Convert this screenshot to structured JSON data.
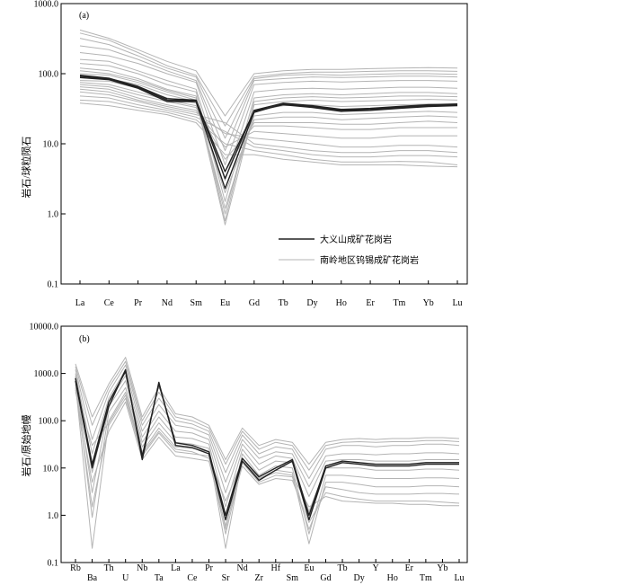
{
  "colors": {
    "background": "#ffffff",
    "reference_pattern": "#b4b4b4",
    "dayishan_pattern": "#222222",
    "axis": "#000000"
  },
  "chart_data": [
    {
      "type": "line",
      "panel_label": "(a)",
      "ylabel": "岩石/球粒陨石",
      "yscale": "log",
      "ylim": [
        0.1,
        1000
      ],
      "ytick_values": [
        0.1,
        1,
        10,
        100,
        1000
      ],
      "ytick_labels": [
        "0.1",
        "1.0",
        "10.0",
        "100.0",
        "1000.0"
      ],
      "categories": [
        "La",
        "Ce",
        "Pr",
        "Nd",
        "Sm",
        "Eu",
        "Gd",
        "Tb",
        "Dy",
        "Ho",
        "Er",
        "Tm",
        "Yb",
        "Lu"
      ],
      "legend": [
        "大义山成矿花岗岩",
        "南岭地区钨锡成矿花岗岩"
      ],
      "series": [
        {
          "name": "大义山成矿花岗岩",
          "group": "dayishan",
          "values": [
            88,
            82,
            62,
            40,
            40,
            2.3,
            28,
            37,
            34,
            30,
            31,
            33,
            35,
            36
          ]
        },
        {
          "name": "大义山成矿花岗岩",
          "group": "dayishan",
          "values": [
            95,
            86,
            66,
            44,
            42,
            3.2,
            30,
            38,
            35,
            31,
            32,
            34,
            36,
            37
          ]
        },
        {
          "name": "大义山成矿花岗岩",
          "group": "dayishan",
          "values": [
            92,
            84,
            64,
            42,
            41,
            4.0,
            29,
            36,
            33,
            29,
            30,
            32,
            34,
            35
          ]
        },
        {
          "name": "南岭地区钨锡成矿花岗岩",
          "group": "reference",
          "values": [
            420,
            320,
            220,
            150,
            110,
            25,
            100,
            110,
            115,
            115,
            118,
            120,
            122,
            120
          ]
        },
        {
          "name": "南岭地区钨锡成矿花岗岩",
          "group": "reference",
          "values": [
            380,
            300,
            200,
            130,
            95,
            18,
            90,
            100,
            105,
            105,
            108,
            110,
            110,
            108
          ]
        },
        {
          "name": "南岭地区钨锡成矿花岗岩",
          "group": "reference",
          "values": [
            320,
            260,
            180,
            120,
            90,
            12,
            85,
            95,
            98,
            95,
            98,
            100,
            100,
            98
          ]
        },
        {
          "name": "南岭地区钨锡成矿花岗岩",
          "group": "reference",
          "values": [
            250,
            220,
            160,
            110,
            80,
            8,
            80,
            85,
            90,
            88,
            90,
            92,
            92,
            90
          ]
        },
        {
          "name": "南岭地区钨锡成矿花岗岩",
          "group": "reference",
          "values": [
            200,
            180,
            140,
            100,
            75,
            5,
            70,
            75,
            78,
            76,
            78,
            80,
            80,
            78
          ]
        },
        {
          "name": "南岭地区钨锡成矿花岗岩",
          "group": "reference",
          "values": [
            160,
            150,
            110,
            80,
            60,
            3,
            55,
            60,
            62,
            60,
            62,
            64,
            64,
            62
          ]
        },
        {
          "name": "南岭地区钨锡成矿花岗岩",
          "group": "reference",
          "values": [
            140,
            130,
            100,
            70,
            55,
            1.5,
            45,
            50,
            52,
            50,
            52,
            54,
            54,
            52
          ]
        },
        {
          "name": "南岭地区钨锡成矿花岗岩",
          "group": "reference",
          "values": [
            120,
            110,
            85,
            60,
            48,
            0.8,
            40,
            45,
            47,
            45,
            46,
            48,
            48,
            47
          ]
        },
        {
          "name": "南岭地区钨锡成矿花岗岩",
          "group": "reference",
          "values": [
            110,
            100,
            80,
            58,
            45,
            1.0,
            36,
            40,
            42,
            40,
            41,
            42,
            43,
            42
          ]
        },
        {
          "name": "南岭地区钨锡成矿花岗岩",
          "group": "reference",
          "values": [
            100,
            95,
            75,
            55,
            42,
            0.7,
            30,
            35,
            36,
            34,
            35,
            36,
            37,
            36
          ]
        },
        {
          "name": "南岭地区钨锡成矿花岗岩",
          "group": "reference",
          "values": [
            90,
            85,
            70,
            50,
            40,
            1.2,
            25,
            28,
            28,
            26,
            27,
            28,
            29,
            28
          ]
        },
        {
          "name": "南岭地区钨锡成矿花岗岩",
          "group": "reference",
          "values": [
            80,
            78,
            62,
            45,
            38,
            2,
            22,
            24,
            24,
            22,
            23,
            24,
            25,
            24
          ]
        },
        {
          "name": "南岭地区钨锡成矿花岗岩",
          "group": "reference",
          "values": [
            75,
            70,
            55,
            42,
            35,
            4,
            20,
            20,
            20,
            19,
            19,
            20,
            21,
            20
          ]
        },
        {
          "name": "南岭地区钨锡成矿花岗岩",
          "group": "reference",
          "values": [
            70,
            65,
            50,
            40,
            33,
            6,
            18,
            18,
            17,
            16,
            16,
            17,
            17,
            17
          ]
        },
        {
          "name": "南岭地区钨锡成矿花岗岩",
          "group": "reference",
          "values": [
            65,
            60,
            45,
            36,
            30,
            9,
            15,
            14,
            13,
            12,
            12,
            13,
            13,
            13
          ]
        },
        {
          "name": "南岭地区钨锡成矿花岗岩",
          "group": "reference",
          "values": [
            60,
            55,
            42,
            34,
            28,
            14,
            12,
            11,
            10,
            9,
            9,
            9.5,
            9.5,
            9
          ]
        },
        {
          "name": "南岭地区钨锡成矿花岗岩",
          "group": "reference",
          "values": [
            55,
            50,
            40,
            32,
            26,
            20,
            10,
            9,
            8,
            7.5,
            7.5,
            8,
            8,
            7.5
          ]
        },
        {
          "name": "南岭地区钨锡成矿花岗岩",
          "group": "reference",
          "values": [
            48,
            45,
            36,
            30,
            24,
            15,
            9,
            8,
            7,
            6.5,
            6.5,
            6.8,
            6.8,
            6.5
          ]
        },
        {
          "name": "南岭地区钨锡成矿花岗岩",
          "group": "reference",
          "values": [
            42,
            40,
            33,
            28,
            22,
            10,
            8,
            7,
            6,
            5.5,
            5.5,
            5.6,
            5.5,
            5
          ]
        },
        {
          "name": "南岭地区钨锡成矿花岗岩",
          "group": "reference",
          "values": [
            38,
            35,
            30,
            26,
            20,
            7,
            7,
            6,
            5.5,
            5,
            5,
            5,
            4.8,
            4.7
          ]
        }
      ]
    },
    {
      "type": "line",
      "panel_label": "(b)",
      "ylabel": "岩石/原始地幔",
      "yscale": "log",
      "ylim": [
        0.1,
        10000
      ],
      "ytick_values": [
        0.1,
        1,
        10,
        100,
        1000,
        10000
      ],
      "ytick_labels": [
        "0.1",
        "1.0",
        "10.0",
        "100.0",
        "1000.0",
        "10000.0"
      ],
      "categories": [
        "Rb",
        "Ba",
        "Th",
        "U",
        "Nb",
        "Ta",
        "La",
        "Ce",
        "Pr",
        "Sr",
        "Nd",
        "Zr",
        "Hf",
        "Sm",
        "Eu",
        "Gd",
        "Tb",
        "Dy",
        "Y",
        "Ho",
        "Er",
        "Tm",
        "Yb",
        "Lu"
      ],
      "series": [
        {
          "name": "大义山成矿花岗岩",
          "group": "dayishan",
          "values": [
            700,
            10,
            200,
            1200,
            15,
            650,
            30,
            27,
            20,
            0.8,
            14,
            5.5,
            9,
            14,
            0.8,
            10,
            13,
            12,
            11,
            11,
            11,
            12,
            12,
            12
          ]
        },
        {
          "name": "大义山成矿花岗岩",
          "group": "dayishan",
          "values": [
            800,
            12,
            250,
            1100,
            18,
            600,
            34,
            30,
            22,
            1.0,
            16,
            6.5,
            10,
            15,
            1.0,
            11,
            14,
            13,
            12,
            12,
            12,
            13,
            13,
            13
          ]
        },
        {
          "name": "南岭地区钨锡成矿花岗岩",
          "group": "reference",
          "values": [
            1600,
            120,
            600,
            2200,
            120,
            500,
            140,
            120,
            80,
            15,
            70,
            30,
            40,
            35,
            12,
            35,
            40,
            42,
            40,
            42,
            42,
            44,
            44,
            42
          ]
        },
        {
          "name": "南岭地区钨锡成矿花岗岩",
          "group": "reference",
          "values": [
            1400,
            80,
            500,
            1800,
            100,
            400,
            120,
            100,
            70,
            12,
            60,
            25,
            35,
            30,
            9,
            30,
            35,
            36,
            35,
            36,
            36,
            38,
            38,
            36
          ]
        },
        {
          "name": "南岭地区钨锡成矿花岗岩",
          "group": "reference",
          "values": [
            1200,
            40,
            400,
            1500,
            80,
            300,
            100,
            85,
            60,
            8,
            50,
            20,
            28,
            25,
            6,
            25,
            30,
            30,
            28,
            30,
            30,
            32,
            32,
            30
          ]
        },
        {
          "name": "南岭地区钨锡成矿花岗岩",
          "group": "reference",
          "values": [
            1000,
            20,
            300,
            1200,
            60,
            220,
            80,
            70,
            50,
            5,
            40,
            16,
            22,
            20,
            4,
            18,
            20,
            20,
            19,
            20,
            20,
            21,
            21,
            20
          ]
        },
        {
          "name": "南岭地区钨锡成矿花岗岩",
          "group": "reference",
          "values": [
            900,
            8,
            250,
            900,
            45,
            160,
            60,
            55,
            40,
            3,
            32,
            12,
            18,
            16,
            2.5,
            14,
            15,
            15,
            14,
            14,
            14,
            15,
            15,
            15
          ]
        },
        {
          "name": "南岭地区钨锡成矿花岗岩",
          "group": "reference",
          "values": [
            800,
            3,
            200,
            700,
            35,
            120,
            45,
            42,
            32,
            1.5,
            25,
            9,
            14,
            13,
            1.2,
            10,
            10,
            10,
            9,
            9,
            9,
            9.5,
            9.5,
            9
          ]
        },
        {
          "name": "南岭地区钨锡成矿花岗岩",
          "group": "reference",
          "values": [
            700,
            0.9,
            150,
            500,
            28,
            90,
            35,
            32,
            26,
            0.5,
            20,
            7,
            11,
            10,
            0.4,
            7,
            7,
            6.5,
            6,
            6,
            6,
            6.2,
            6.2,
            6
          ]
        },
        {
          "name": "南岭地区钨锡成矿花岗岩",
          "group": "reference",
          "values": [
            600,
            0.2,
            100,
            400,
            22,
            70,
            28,
            26,
            22,
            0.2,
            16,
            6,
            9,
            8,
            0.25,
            5,
            5,
            4.5,
            4,
            4,
            4,
            4.2,
            4.2,
            4
          ]
        },
        {
          "name": "南岭地区钨锡成矿花岗岩",
          "group": "reference",
          "values": [
            500,
            1.5,
            80,
            300,
            18,
            55,
            22,
            20,
            18,
            0.4,
            13,
            5,
            7,
            6.5,
            0.5,
            4,
            3.5,
            3,
            2.8,
            2.8,
            2.8,
            2.9,
            2.9,
            2.8
          ]
        },
        {
          "name": "南岭地区钨锡成矿花岗岩",
          "group": "reference",
          "values": [
            450,
            5,
            60,
            250,
            15,
            45,
            18,
            16,
            14,
            0.6,
            11,
            4.5,
            6,
            5.5,
            0.7,
            3,
            2.5,
            2.2,
            2,
            2,
            2,
            2,
            1.9,
            1.8
          ]
        },
        {
          "name": "南岭地区钨锡成矿花岗岩",
          "group": "reference",
          "values": [
            400,
            30,
            90,
            350,
            20,
            60,
            25,
            22,
            16,
            2,
            14,
            6,
            8,
            7,
            1.5,
            2.5,
            2,
            1.9,
            1.8,
            1.8,
            1.7,
            1.7,
            1.6,
            1.6
          ]
        }
      ]
    }
  ]
}
